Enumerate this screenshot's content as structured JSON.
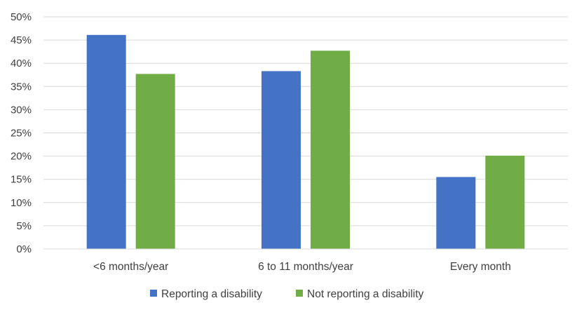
{
  "chart_data": {
    "type": "bar",
    "title": "",
    "xlabel": "",
    "ylabel": "",
    "categories": [
      "<6 months/year",
      "6 to 11 months/year",
      "Every month"
    ],
    "series": [
      {
        "name": "Reporting a disability",
        "color": "#4472C4",
        "values": [
          46.1,
          38.3,
          15.5
        ]
      },
      {
        "name": "Not reporting a disability",
        "color": "#70AD47",
        "values": [
          37.7,
          42.7,
          20.1
        ]
      }
    ],
    "ylim": [
      0,
      50
    ],
    "y_ticks": [
      "0%",
      "5%",
      "10%",
      "15%",
      "20%",
      "25%",
      "30%",
      "35%",
      "40%",
      "45%",
      "50%"
    ],
    "grid": true,
    "legend_position": "bottom"
  }
}
